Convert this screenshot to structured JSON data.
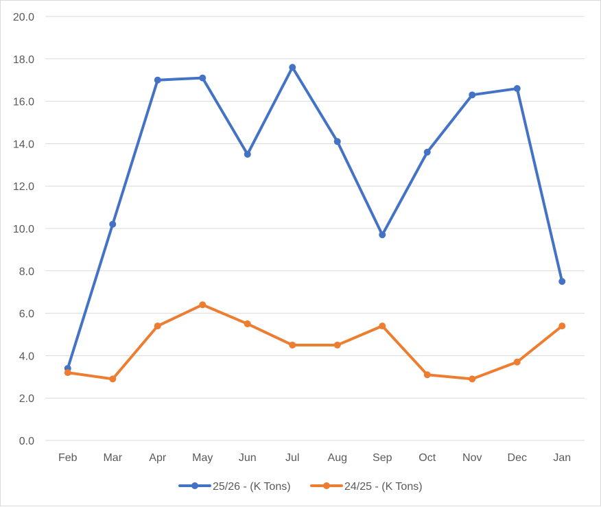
{
  "chart_data": {
    "type": "line",
    "title": "",
    "xlabel": "",
    "ylabel": "",
    "categories": [
      "Feb",
      "Mar",
      "Apr",
      "May",
      "Jun",
      "Jul",
      "Aug",
      "Sep",
      "Oct",
      "Nov",
      "Dec",
      "Jan"
    ],
    "ylim": [
      0,
      20
    ],
    "yticks": [
      "0.0",
      "2.0",
      "4.0",
      "6.0",
      "8.0",
      "10.0",
      "12.0",
      "14.0",
      "16.0",
      "18.0",
      "20.0"
    ],
    "grid": true,
    "legend_position": "bottom",
    "series": [
      {
        "name": "25/26 - (K Tons)",
        "color": "#4472c4",
        "values": [
          3.4,
          10.2,
          17.0,
          17.1,
          13.5,
          17.6,
          14.1,
          9.7,
          13.6,
          16.3,
          16.6,
          7.5
        ]
      },
      {
        "name": "24/25 - (K Tons)",
        "color": "#ed7d31",
        "values": [
          3.2,
          2.9,
          5.4,
          6.4,
          5.5,
          4.5,
          4.5,
          5.4,
          3.1,
          2.9,
          3.7,
          5.4
        ]
      }
    ]
  }
}
